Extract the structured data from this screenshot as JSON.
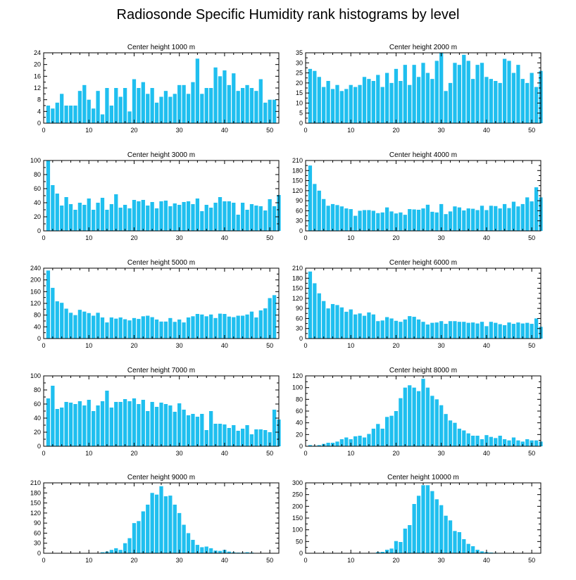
{
  "title": "Radiosonde Specific Humidity rank histograms by level",
  "colors": {
    "bar": "#1FBFEF",
    "axis": "#000000",
    "background": "#ffffff"
  },
  "chart_data": [
    {
      "type": "bar",
      "title": "Center height 1000 m",
      "x_start": 1,
      "xlim": [
        0,
        52
      ],
      "xticks": [
        0,
        10,
        20,
        30,
        40,
        50
      ],
      "ylim": [
        0,
        24
      ],
      "yticks": [
        0,
        4,
        8,
        12,
        16,
        20,
        24
      ],
      "values": [
        6,
        5,
        7,
        10,
        6,
        6,
        6,
        11,
        13,
        8,
        5,
        11,
        3,
        12,
        6,
        12,
        9,
        12,
        4,
        15,
        12,
        14,
        10,
        12,
        7,
        9,
        11,
        9,
        10,
        13,
        13,
        10,
        14,
        22,
        10,
        12,
        12,
        19,
        16,
        18,
        13,
        17,
        11,
        12,
        13,
        12,
        11,
        15,
        7,
        8,
        8
      ]
    },
    {
      "type": "bar",
      "title": "Center height 2000 m",
      "x_start": 1,
      "xlim": [
        0,
        52
      ],
      "xticks": [
        0,
        10,
        20,
        30,
        40,
        50
      ],
      "ylim": [
        0,
        35
      ],
      "yticks": [
        0,
        5,
        10,
        15,
        20,
        25,
        30,
        35
      ],
      "values": [
        27,
        26,
        23,
        18,
        21,
        17,
        19,
        16,
        17,
        19,
        18,
        19,
        23,
        22,
        21,
        24,
        18,
        25,
        20,
        27,
        21,
        29,
        19,
        29,
        23,
        30,
        25,
        22,
        31,
        35,
        16,
        20,
        30,
        29,
        34,
        31,
        22,
        29,
        30,
        23,
        22,
        21,
        20,
        32,
        31,
        25,
        29,
        22,
        20,
        25,
        18,
        26
      ]
    },
    {
      "type": "bar",
      "title": "Center height 3000 m",
      "x_start": 1,
      "xlim": [
        0,
        52
      ],
      "xticks": [
        0,
        10,
        20,
        30,
        40,
        50
      ],
      "ylim": [
        0,
        100
      ],
      "yticks": [
        0,
        20,
        40,
        60,
        80,
        100
      ],
      "values": [
        100,
        65,
        53,
        36,
        48,
        38,
        30,
        40,
        37,
        46,
        30,
        40,
        47,
        30,
        38,
        52,
        33,
        37,
        32,
        44,
        42,
        44,
        36,
        41,
        32,
        42,
        43,
        35,
        39,
        37,
        41,
        42,
        38,
        46,
        28,
        37,
        33,
        40,
        48,
        42,
        42,
        40,
        23,
        40,
        30,
        38,
        36,
        35,
        29,
        45,
        35,
        51
      ]
    },
    {
      "type": "bar",
      "title": "Center height 4000 m",
      "x_start": 1,
      "xlim": [
        0,
        52
      ],
      "xticks": [
        0,
        10,
        20,
        30,
        40,
        50
      ],
      "ylim": [
        0,
        210
      ],
      "yticks": [
        0,
        30,
        60,
        90,
        120,
        150,
        180,
        210
      ],
      "values": [
        195,
        140,
        120,
        95,
        75,
        80,
        77,
        73,
        67,
        65,
        45,
        60,
        62,
        62,
        60,
        53,
        55,
        70,
        58,
        52,
        55,
        48,
        65,
        64,
        63,
        67,
        78,
        57,
        55,
        80,
        50,
        58,
        73,
        70,
        61,
        67,
        66,
        62,
        75,
        62,
        75,
        74,
        67,
        80,
        68,
        87,
        73,
        80,
        100,
        88,
        130,
        100
      ]
    },
    {
      "type": "bar",
      "title": "Center height 5000 m",
      "x_start": 1,
      "xlim": [
        0,
        52
      ],
      "xticks": [
        0,
        10,
        20,
        30,
        40,
        50
      ],
      "ylim": [
        0,
        240
      ],
      "yticks": [
        0,
        40,
        80,
        120,
        160,
        200,
        240
      ],
      "values": [
        232,
        173,
        127,
        122,
        102,
        88,
        80,
        98,
        92,
        87,
        78,
        88,
        72,
        55,
        72,
        68,
        72,
        66,
        62,
        70,
        67,
        76,
        78,
        73,
        65,
        58,
        58,
        70,
        57,
        65,
        55,
        72,
        76,
        84,
        82,
        76,
        82,
        70,
        85,
        84,
        75,
        73,
        78,
        78,
        82,
        92,
        72,
        96,
        103,
        138,
        148
      ]
    },
    {
      "type": "bar",
      "title": "Center height 6000 m",
      "x_start": 1,
      "xlim": [
        0,
        52
      ],
      "xticks": [
        0,
        10,
        20,
        30,
        40,
        50
      ],
      "ylim": [
        0,
        210
      ],
      "yticks": [
        0,
        30,
        60,
        90,
        120,
        150,
        180,
        210
      ],
      "values": [
        200,
        165,
        135,
        112,
        90,
        103,
        100,
        93,
        80,
        87,
        72,
        75,
        68,
        78,
        72,
        52,
        54,
        64,
        60,
        53,
        50,
        57,
        67,
        65,
        57,
        50,
        42,
        47,
        48,
        52,
        44,
        52,
        52,
        50,
        50,
        47,
        48,
        45,
        50,
        37,
        50,
        47,
        43,
        40,
        48,
        44,
        48,
        45,
        47,
        44,
        60,
        35
      ]
    },
    {
      "type": "bar",
      "title": "Center height 7000 m",
      "x_start": 1,
      "xlim": [
        0,
        52
      ],
      "xticks": [
        0,
        10,
        20,
        30,
        40,
        50
      ],
      "ylim": [
        0,
        100
      ],
      "yticks": [
        0,
        20,
        40,
        60,
        80,
        100
      ],
      "values": [
        68,
        86,
        53,
        55,
        63,
        62,
        60,
        64,
        58,
        66,
        50,
        58,
        64,
        79,
        55,
        63,
        63,
        67,
        64,
        68,
        60,
        66,
        50,
        63,
        56,
        62,
        60,
        58,
        49,
        61,
        52,
        44,
        46,
        42,
        46,
        23,
        50,
        32,
        32,
        31,
        26,
        30,
        22,
        25,
        30,
        17,
        24,
        24,
        23,
        20,
        52,
        38
      ]
    },
    {
      "type": "bar",
      "title": "Center height 8000 m",
      "x_start": 1,
      "xlim": [
        0,
        52
      ],
      "xticks": [
        0,
        10,
        20,
        30,
        40,
        50
      ],
      "ylim": [
        0,
        120
      ],
      "yticks": [
        0,
        20,
        40,
        60,
        80,
        100,
        120
      ],
      "values": [
        2,
        1,
        2,
        4,
        6,
        6,
        8,
        12,
        15,
        12,
        17,
        18,
        15,
        21,
        30,
        38,
        30,
        50,
        52,
        60,
        82,
        100,
        104,
        100,
        94,
        115,
        100,
        86,
        80,
        70,
        55,
        44,
        40,
        30,
        27,
        22,
        18,
        18,
        12,
        19,
        16,
        14,
        18,
        12,
        10,
        15,
        10,
        8,
        12,
        10,
        10,
        8
      ]
    },
    {
      "type": "bar",
      "title": "Center height 9000 m",
      "x_start": 1,
      "xlim": [
        0,
        52
      ],
      "xticks": [
        0,
        10,
        20,
        30,
        40,
        50
      ],
      "ylim": [
        0,
        210
      ],
      "yticks": [
        0,
        30,
        60,
        90,
        120,
        150,
        180,
        210
      ],
      "values": [
        0,
        0,
        0,
        0,
        0,
        0,
        0,
        0,
        0,
        0,
        0,
        0,
        3,
        5,
        10,
        15,
        10,
        30,
        45,
        90,
        96,
        125,
        145,
        180,
        175,
        200,
        170,
        172,
        145,
        120,
        85,
        60,
        40,
        25,
        18,
        20,
        15,
        8,
        7,
        10,
        5,
        3,
        2,
        2,
        3,
        2,
        1,
        1,
        1,
        1,
        1,
        0
      ]
    },
    {
      "type": "bar",
      "title": "Center height 10000 m",
      "x_start": 1,
      "xlim": [
        0,
        52
      ],
      "xticks": [
        0,
        10,
        20,
        30,
        40,
        50
      ],
      "ylim": [
        0,
        300
      ],
      "yticks": [
        0,
        50,
        100,
        150,
        200,
        250,
        300
      ],
      "values": [
        0,
        0,
        0,
        0,
        0,
        0,
        0,
        0,
        0,
        0,
        0,
        0,
        0,
        0,
        0,
        5,
        6,
        15,
        20,
        52,
        48,
        105,
        120,
        210,
        245,
        290,
        290,
        265,
        230,
        205,
        160,
        140,
        95,
        90,
        60,
        40,
        30,
        15,
        8,
        5,
        3,
        2,
        1,
        1,
        1,
        0,
        0,
        0,
        0,
        0,
        0,
        0
      ]
    }
  ]
}
